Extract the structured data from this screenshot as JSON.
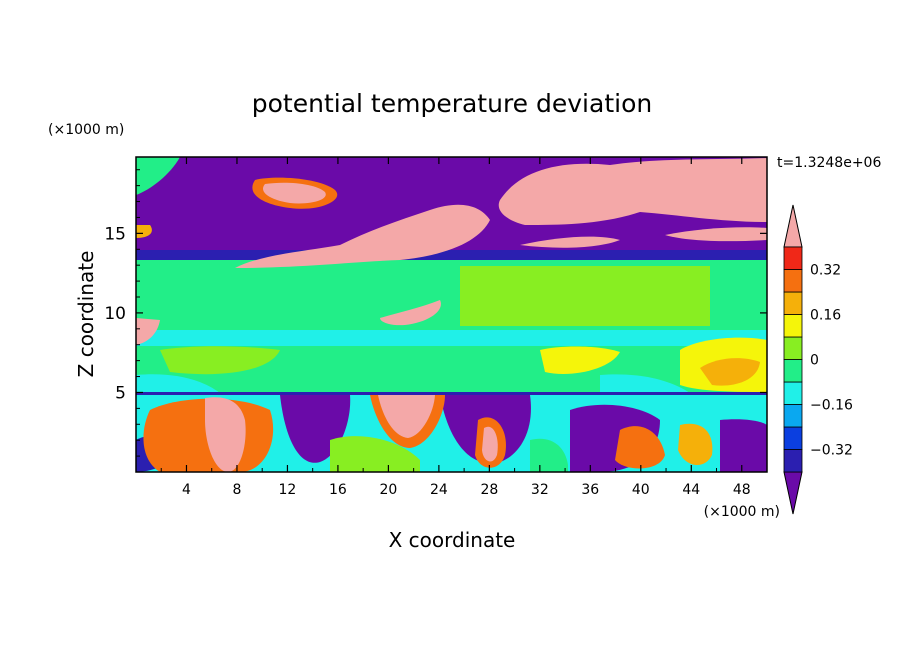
{
  "chart_data": {
    "type": "heatmap",
    "title": "potential temperature deviation",
    "xlabel": "X coordinate",
    "ylabel": "Z coordinate",
    "x_unit": "(×1000 m)",
    "y_unit": "(×1000 m)",
    "time_label": "t=1.3248e+06",
    "xlim": [
      0,
      50
    ],
    "ylim": [
      0,
      19.8
    ],
    "xticks": [
      4,
      8,
      12,
      16,
      20,
      24,
      28,
      32,
      36,
      40,
      44,
      48
    ],
    "xtick_labels": [
      "4",
      "8",
      "12",
      "16",
      "20",
      "24",
      "28",
      "32",
      "36",
      "40",
      "44",
      "48"
    ],
    "yticks": [
      5,
      10,
      15
    ],
    "ytick_labels": [
      "5",
      "10",
      "15"
    ],
    "colorbar": {
      "levels": [
        -0.4,
        -0.32,
        -0.24,
        -0.16,
        -0.08,
        0,
        0.08,
        0.16,
        0.24,
        0.32,
        0.4
      ],
      "labels": [
        "0.32",
        "0.16",
        "0",
        "−0.16",
        "−0.32"
      ],
      "label_values": [
        0.32,
        0.16,
        0,
        -0.16,
        -0.32
      ],
      "colors": [
        "#6a0aa8",
        "#2b1fb0",
        "#0b3fe0",
        "#0aa8f0",
        "#20f0e8",
        "#22ee88",
        "#88ee22",
        "#f5f50a",
        "#f5b00a",
        "#f57010",
        "#f02818",
        "#f4a8a8"
      ],
      "extend": "both"
    },
    "fields": [
      {
        "x": [
          0,
          50
        ],
        "z": [
          13.6,
          19.8
        ],
        "description": "upper layer dominated by strongly negative values with positive blobs"
      },
      {
        "x": [
          0,
          50
        ],
        "z": [
          5,
          13.6
        ],
        "description": "near-zero band"
      },
      {
        "x": [
          0,
          50
        ],
        "z": [
          0,
          5
        ],
        "description": "lower layer with alternating strong positive and negative columns"
      }
    ]
  }
}
